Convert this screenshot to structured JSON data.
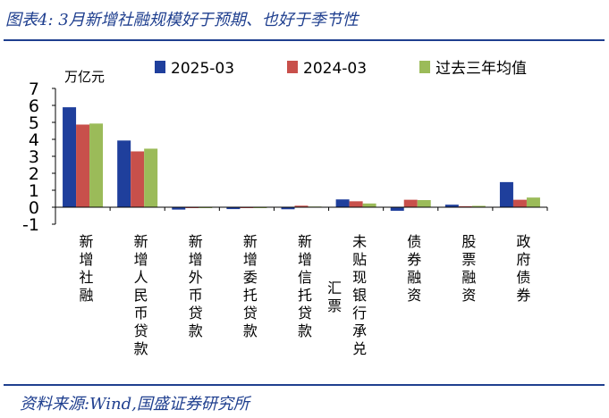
{
  "header": {
    "title": "图表4:  3月新增社融规模好于预期、也好于季节性"
  },
  "footer": {
    "source": "资料来源:Wind,国盛证券研究所"
  },
  "chart_data": {
    "type": "bar",
    "title": "",
    "ylabel": "万亿元",
    "xlabel": "",
    "ylim": [
      -1,
      7
    ],
    "yticks": [
      "-1",
      "0",
      "1",
      "2",
      "3",
      "4",
      "5",
      "6",
      "7"
    ],
    "categories": [
      [
        "新",
        "增",
        "社",
        "融"
      ],
      [
        "新",
        "增",
        "人",
        "民",
        "币",
        "贷",
        "款"
      ],
      [
        "新",
        "增",
        "外",
        "币",
        "贷",
        "款"
      ],
      [
        "新",
        "增",
        "委",
        "托",
        "贷",
        "款"
      ],
      [
        "新",
        "增",
        "信",
        "托",
        "贷",
        "款"
      ],
      [
        "未",
        "贴",
        "现",
        "银",
        "行",
        "承",
        "兑"
      ],
      [
        "债",
        "券",
        "融",
        "资"
      ],
      [
        "股",
        "票",
        "融",
        "资"
      ],
      [
        "政",
        "府",
        "债",
        "券"
      ]
    ],
    "extra_label": {
      "category_index": 5,
      "chars": [
        "汇",
        "票"
      ]
    },
    "series": [
      {
        "name": "2025-03",
        "color": "#1f3f9c",
        "values": [
          5.89,
          3.93,
          -0.14,
          -0.11,
          -0.12,
          0.46,
          -0.21,
          0.15,
          1.48
        ]
      },
      {
        "name": "2024-03",
        "color": "#c8504b",
        "values": [
          4.87,
          3.29,
          -0.03,
          -0.04,
          0.09,
          0.35,
          0.44,
          0.06,
          0.44
        ]
      },
      {
        "name": "过去三年均值",
        "color": "#9bbb59",
        "values": [
          4.93,
          3.45,
          -0.03,
          -0.02,
          0.04,
          0.22,
          0.42,
          0.08,
          0.57
        ]
      }
    ],
    "legend_position": "top"
  }
}
